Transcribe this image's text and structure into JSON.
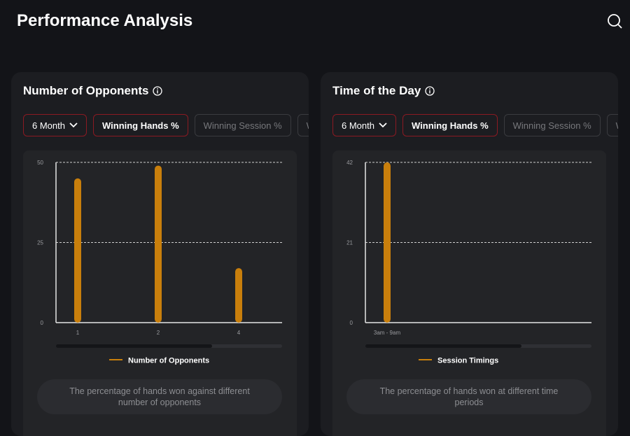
{
  "header": {
    "title": "Performance Analysis"
  },
  "panels": [
    {
      "title": "Number of Opponents",
      "filters": [
        "6 Month",
        "Winning Hands %",
        "Winning Session %",
        "W"
      ],
      "description": "The percentage of hands won against different number of opponents"
    },
    {
      "title": "Time of the Day",
      "filters": [
        "6 Month",
        "Winning Hands %",
        "Winning Session %",
        "W"
      ],
      "description": "The percentage of hands won at different time periods"
    }
  ],
  "chart_data": [
    {
      "type": "bar",
      "categories": [
        "1",
        "2",
        "4"
      ],
      "series": [
        {
          "name": "Number of Opponents",
          "color": "#c97f0c",
          "values": [
            45,
            49,
            17
          ]
        }
      ],
      "ylim": [
        0,
        50
      ],
      "yticks": [
        0,
        25,
        50
      ],
      "grid": true
    },
    {
      "type": "bar",
      "categories": [
        "3am - 9am"
      ],
      "series": [
        {
          "name": "Session Timings",
          "color": "#c97f0c",
          "values": [
            42
          ]
        }
      ],
      "ylim": [
        0,
        42
      ],
      "yticks": [
        0,
        21,
        42
      ],
      "grid": true
    }
  ]
}
